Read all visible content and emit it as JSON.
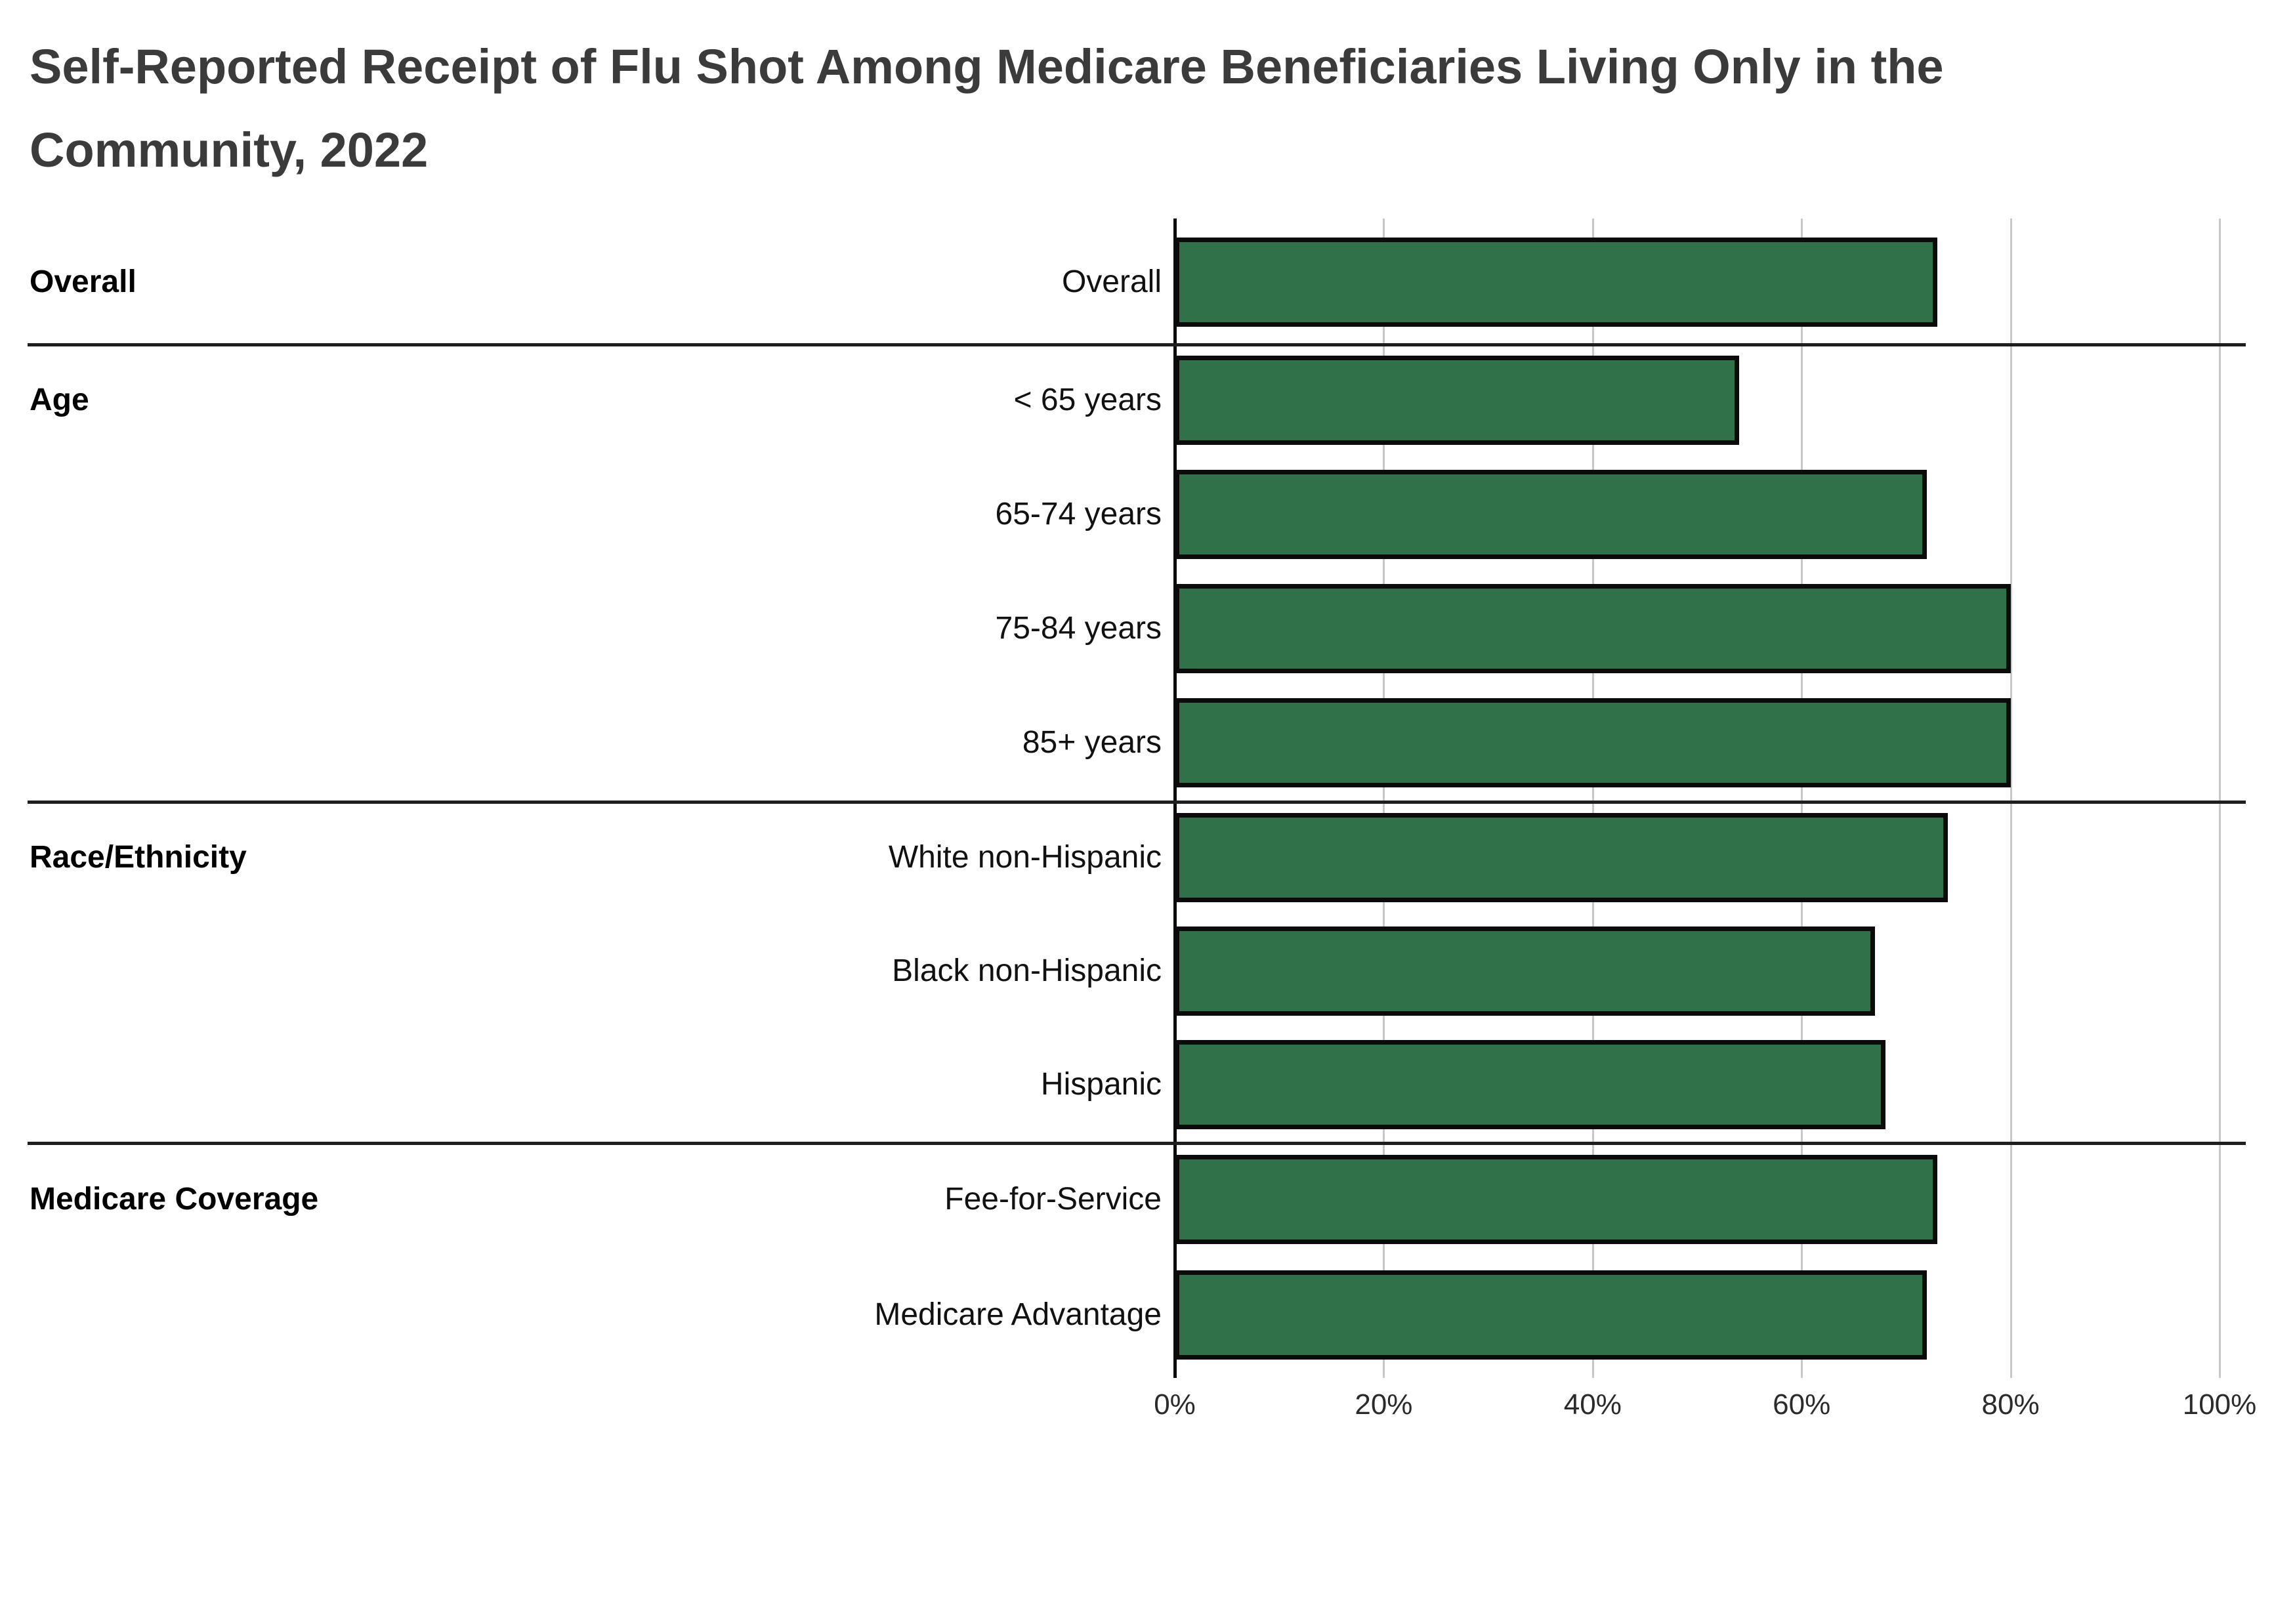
{
  "title": "Self-Reported Receipt of Flu Shot Among Medicare Beneficiaries Living Only in the Community, 2022",
  "colors": {
    "bar_fill": "#317149",
    "bar_border": "#0b0b0b",
    "axis_line": "#0a0a0a",
    "gridline": "#c8c8c8",
    "section_divider": "#1f1f1f",
    "title_text": "#3b3b3b",
    "label_text": "#111111"
  },
  "chart_data": {
    "type": "bar",
    "orientation": "horizontal",
    "unit": "percent",
    "title": "Self-Reported Receipt of Flu Shot Among Medicare Beneficiaries Living Only in the Community, 2022",
    "xlabel": "",
    "ylabel": "",
    "xlim": [
      0,
      100
    ],
    "x_ticks": [
      "0%",
      "20%",
      "40%",
      "60%",
      "80%",
      "100%"
    ],
    "x_tick_values": [
      0,
      20,
      40,
      60,
      80,
      100
    ],
    "grid": true,
    "legend": false,
    "groups": [
      {
        "section": "Overall",
        "rows": [
          {
            "label": "Overall",
            "value": 73
          }
        ]
      },
      {
        "section": "Age",
        "rows": [
          {
            "label": "< 65 years",
            "value": 54
          },
          {
            "label": "65-74 years",
            "value": 72
          },
          {
            "label": "75-84 years",
            "value": 80
          },
          {
            "label": "85+ years",
            "value": 80
          }
        ]
      },
      {
        "section": "Race/Ethnicity",
        "rows": [
          {
            "label": "White non-Hispanic",
            "value": 74
          },
          {
            "label": "Black non-Hispanic",
            "value": 67
          },
          {
            "label": "Hispanic",
            "value": 68
          }
        ]
      },
      {
        "section": "Medicare Coverage",
        "rows": [
          {
            "label": "Fee-for-Service",
            "value": 73
          },
          {
            "label": "Medicare Advantage",
            "value": 72
          }
        ]
      }
    ]
  }
}
